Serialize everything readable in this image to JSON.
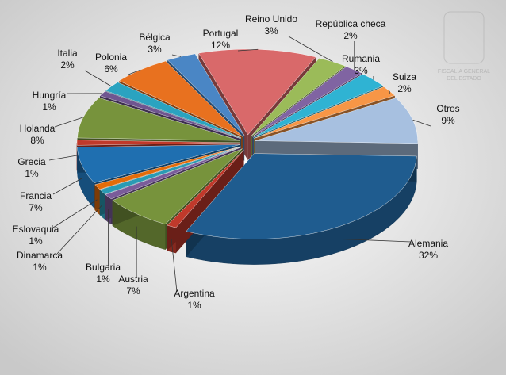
{
  "logo_text": [
    "FISCALÍA GENERAL",
    "DEL ESTADO"
  ],
  "chart_data": {
    "type": "pie3d",
    "categories": [
      "Otros",
      "Alemania",
      "Argentina",
      "Austria",
      "Bulgaria",
      "Dinamarca",
      "Eslovaquia",
      "Francia",
      "Grecia",
      "Holanda",
      "Hungría",
      "Italia",
      "Polonia",
      "Bélgica",
      "Portugal",
      "Reino Unido",
      "República checa",
      "Rumania",
      "Suiza"
    ],
    "values": [
      9,
      32,
      1,
      7,
      1,
      1,
      1,
      7,
      1,
      8,
      1,
      2,
      6,
      3,
      12,
      3,
      2,
      3,
      2
    ],
    "value_labels": [
      "9%",
      "32%",
      "1%",
      "7%",
      "1%",
      "1%",
      "1%",
      "7%",
      "1%",
      "8%",
      "1%",
      "2%",
      "6%",
      "3%",
      "12%",
      "3%",
      "2%",
      "3%",
      "2%"
    ],
    "colors": [
      "#a7c0e0",
      "#1f5c8f",
      "#c0392b",
      "#77933c",
      "#7a5c9a",
      "#2a9bb4",
      "#e36c0a",
      "#1f6fb0",
      "#c0392b",
      "#77933c",
      "#6f5690",
      "#2aa3c0",
      "#e8711f",
      "#4a86c5",
      "#d9696a",
      "#9bbb59",
      "#8064a2",
      "#2fb3d3",
      "#f79646"
    ]
  }
}
